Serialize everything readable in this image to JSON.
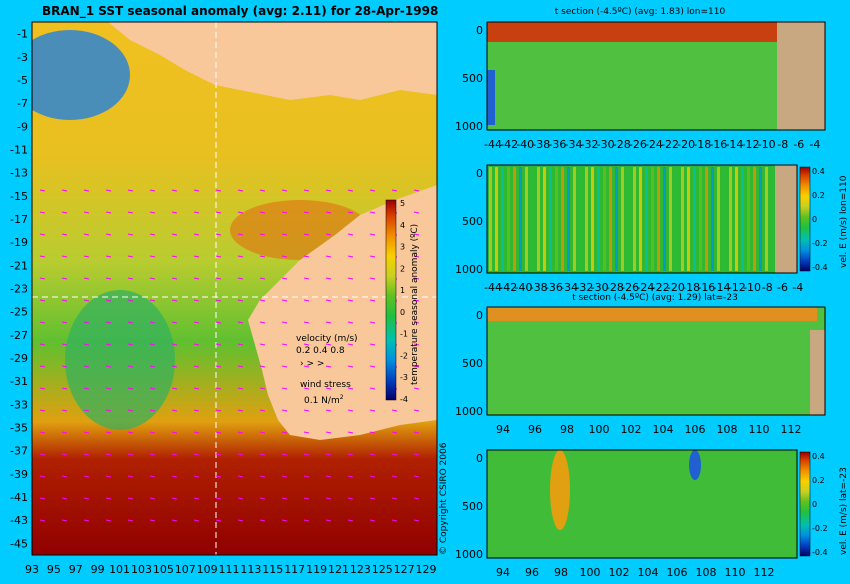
{
  "colors": {
    "background": "#00ccff",
    "land": "#f8c89a",
    "land_section": "#c8a880",
    "vector": "#ff00ff",
    "palette": [
      "#00006a",
      "#0040c0",
      "#0090e0",
      "#00c0b0",
      "#20c040",
      "#60c020",
      "#c8d020",
      "#f8d000",
      "#f09000",
      "#d84000",
      "#980000"
    ]
  },
  "map": {
    "title": "BRAN_1 SST seasonal anomaly (avg: 2.11) for 28-Apr-1998",
    "lon_ticks": [
      "93",
      "95",
      "97",
      "99",
      "101",
      "103",
      "105",
      "107",
      "109",
      "111",
      "113",
      "115",
      "117",
      "119",
      "121",
      "123",
      "125",
      "127",
      "129"
    ],
    "lat_ticks": [
      "-1",
      "-3",
      "-5",
      "-7",
      "-9",
      "-11",
      "-13",
      "-15",
      "-17",
      "-19",
      "-21",
      "-23",
      "-25",
      "-27",
      "-29",
      "-31",
      "-33",
      "-35",
      "-37",
      "-39",
      "-41",
      "-43",
      "-45"
    ],
    "colorbar_label": "temperature seasonal anomaly (ºC)",
    "colorbar_ticks": [
      "5",
      "4",
      "3",
      "2",
      "1",
      "0",
      "-1",
      "-2",
      "-3",
      "-4"
    ],
    "velocity_title": "velocity (m/s)",
    "velocity_scale": "0.2 0.4 0.8",
    "wind_title": "wind stress",
    "wind_scale": "0.1 N/m",
    "wind_scale_sup": "2",
    "copyright": "© Copyright CSIRO 2006"
  },
  "chart_data": [
    {
      "type": "heatmap",
      "title": "BRAN_1 SST seasonal anomaly (avg: 2.11) for 28-Apr-1998",
      "x_range": [
        93,
        130
      ],
      "y_range": [
        -45,
        0
      ],
      "colorbar_range": [
        -4,
        5
      ],
      "colorbar_label": "temperature seasonal anomaly (ºC)",
      "mean": 2.11
    },
    {
      "type": "heatmap",
      "title": "t section (-4.5ºC) (avg: 1.83) lon=110",
      "x_ticks": [
        "-44",
        "-42",
        "-40",
        "-38",
        "-36",
        "-34",
        "-32",
        "-30",
        "-28",
        "-26",
        "-24",
        "-22",
        "-20",
        "-18",
        "-16",
        "-14",
        "-12",
        "-10",
        "-8",
        "-6",
        "-4"
      ],
      "y_ticks": [
        "0",
        "500",
        "1000"
      ],
      "mean": 1.83
    },
    {
      "type": "heatmap",
      "colorbar_label": "vel. E (m/s) lon=110",
      "x_ticks": [
        "-44",
        "-42",
        "-40",
        "-38",
        "-36",
        "-34",
        "-32",
        "-30",
        "-28",
        "-26",
        "-24",
        "-22",
        "-20",
        "-18",
        "-16",
        "-14",
        "-12",
        "-10",
        "-8",
        "-6",
        "-4"
      ],
      "y_ticks": [
        "0",
        "500",
        "1000"
      ],
      "colorbar_ticks": [
        "0.4",
        "0.2",
        "0",
        "-0.2",
        "-0.4"
      ]
    },
    {
      "type": "heatmap",
      "title": "t section (-4.5ºC) (avg: 1.29) lat=-23",
      "x_ticks": [
        "94",
        "96",
        "98",
        "100",
        "102",
        "104",
        "106",
        "108",
        "110",
        "112"
      ],
      "y_ticks": [
        "0",
        "500",
        "1000"
      ],
      "mean": 1.29
    },
    {
      "type": "heatmap",
      "colorbar_label": "vel. E (m/s) lat=-23",
      "x_ticks": [
        "94",
        "96",
        "98",
        "100",
        "102",
        "104",
        "106",
        "108",
        "110",
        "112"
      ],
      "y_ticks": [
        "0",
        "500",
        "1000"
      ],
      "colorbar_ticks": [
        "0.4",
        "0.2",
        "0",
        "-0.2",
        "-0.4"
      ]
    }
  ]
}
